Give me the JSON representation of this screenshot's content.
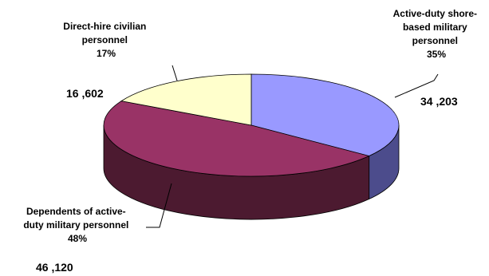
{
  "chart_data": {
    "type": "pie",
    "three_d": true,
    "title": "",
    "legend": "none",
    "slices": [
      {
        "label": "Active-duty shore-based military personnel",
        "percent_label": "35%",
        "count_label": "34 ,203",
        "value": 34203,
        "color": "#9999ff",
        "side_color": "#4c4c8c"
      },
      {
        "label": "Dependents of active-duty military personnel",
        "percent_label": "48%",
        "count_label": "46 ,120",
        "value": 46120,
        "color": "#993366",
        "side_color": "#4c1a30"
      },
      {
        "label": "Direct-hire civilian personnel",
        "percent_label": "17%",
        "count_label": "16 ,602",
        "value": 16602,
        "color": "#ffffcc",
        "side_color": "#9a9a70"
      }
    ],
    "label_lines": [
      [
        "Active-duty shore-",
        "based military",
        "personnel",
        "35%"
      ],
      [
        "Dependents of active-",
        "duty military personnel",
        "48%"
      ],
      [
        "Direct-hire civilian",
        "personnel",
        "17%"
      ]
    ]
  }
}
